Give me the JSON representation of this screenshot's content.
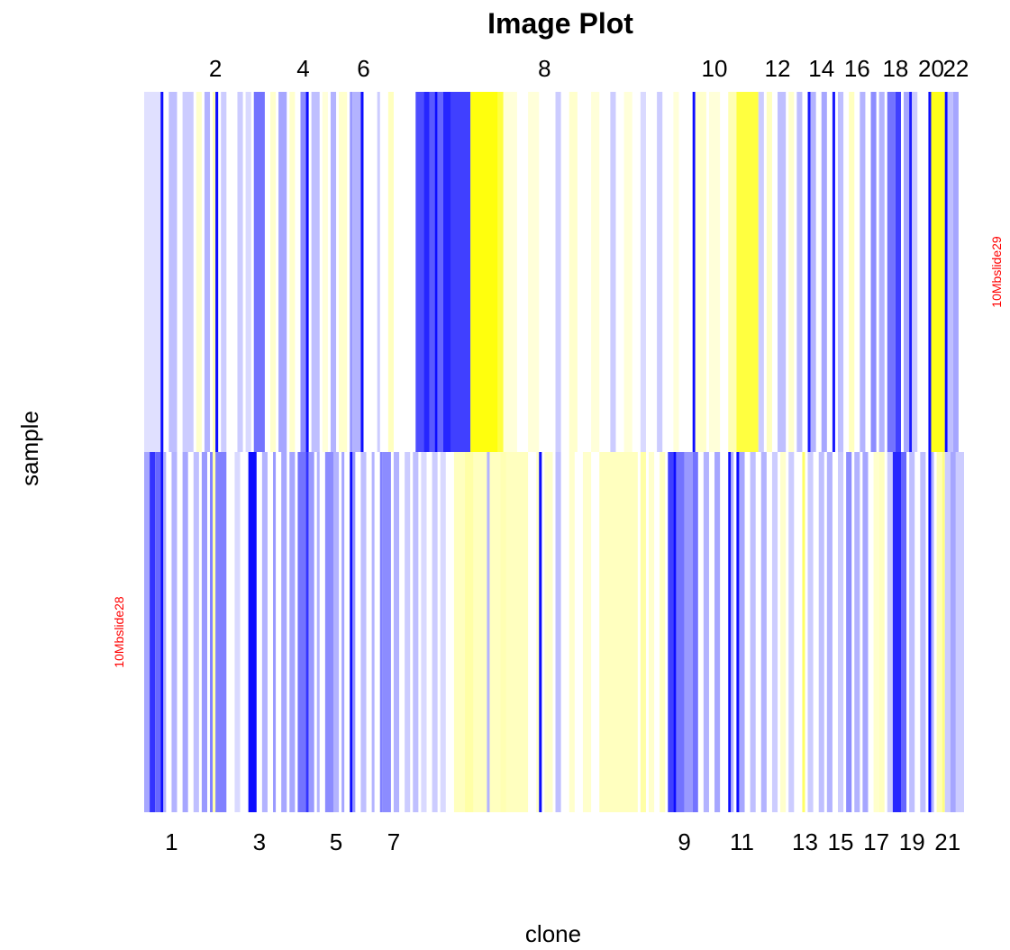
{
  "colors": {
    "low": "#0000ff",
    "mid": "#ffffff",
    "high": "#ffff00",
    "row_label": "#ff0000"
  },
  "chart_data": {
    "type": "heatmap",
    "title": "Image Plot",
    "xlabel": "clone",
    "ylabel": "sample",
    "value_range": [
      -1,
      1
    ],
    "legend": "none",
    "grid": false,
    "samples": [
      "10Mbslide28",
      "10Mbslide29"
    ],
    "x_range": [
      0,
      299
    ],
    "chromosome_labels_bottom": [
      {
        "label": "1",
        "x": 10
      },
      {
        "label": "3",
        "x": 42
      },
      {
        "label": "5",
        "x": 70
      },
      {
        "label": "7",
        "x": 91
      },
      {
        "label": "9",
        "x": 197
      },
      {
        "label": "11",
        "x": 218
      },
      {
        "label": "13",
        "x": 241
      },
      {
        "label": "15",
        "x": 254
      },
      {
        "label": "17",
        "x": 267
      },
      {
        "label": "19",
        "x": 280
      },
      {
        "label": "21",
        "x": 293
      }
    ],
    "chromosome_labels_top": [
      {
        "label": "2",
        "x": 26
      },
      {
        "label": "4",
        "x": 58
      },
      {
        "label": "6",
        "x": 80
      },
      {
        "label": "8",
        "x": 146
      },
      {
        "label": "10",
        "x": 208
      },
      {
        "label": "12",
        "x": 231
      },
      {
        "label": "14",
        "x": 247
      },
      {
        "label": "16",
        "x": 260
      },
      {
        "label": "18",
        "x": 274
      },
      {
        "label": "20",
        "x": 287
      },
      {
        "label": "22",
        "x": 296
      }
    ],
    "rows": [
      {
        "sample": "10Mbslide29",
        "segments": [
          {
            "x0": 0,
            "x1": 299,
            "value": 0
          },
          {
            "x0": 0,
            "x1": 6,
            "value": -0.12
          },
          {
            "x0": 6,
            "x1": 7,
            "value": -0.95
          },
          {
            "x0": 9,
            "x1": 12,
            "value": -0.25
          },
          {
            "x0": 14,
            "x1": 18,
            "value": -0.2
          },
          {
            "x0": 19,
            "x1": 21,
            "value": 0.2
          },
          {
            "x0": 22,
            "x1": 24,
            "value": -0.3
          },
          {
            "x0": 25,
            "x1": 26,
            "value": 0.3
          },
          {
            "x0": 26,
            "x1": 27,
            "value": -0.95
          },
          {
            "x0": 28,
            "x1": 30,
            "value": -0.2
          },
          {
            "x0": 34,
            "x1": 36,
            "value": -0.2
          },
          {
            "x0": 37,
            "x1": 39,
            "value": -0.15
          },
          {
            "x0": 40,
            "x1": 44,
            "value": -0.55
          },
          {
            "x0": 46,
            "x1": 48,
            "value": 0.2
          },
          {
            "x0": 49,
            "x1": 52,
            "value": -0.35
          },
          {
            "x0": 53,
            "x1": 55,
            "value": 0.2
          },
          {
            "x0": 57,
            "x1": 59,
            "value": -0.45
          },
          {
            "x0": 59,
            "x1": 60,
            "value": -0.95
          },
          {
            "x0": 61,
            "x1": 64,
            "value": -0.25
          },
          {
            "x0": 65,
            "x1": 67,
            "value": 0.15
          },
          {
            "x0": 68,
            "x1": 70,
            "value": -0.3
          },
          {
            "x0": 71,
            "x1": 74,
            "value": 0.2
          },
          {
            "x0": 75,
            "x1": 76,
            "value": -0.4
          },
          {
            "x0": 76,
            "x1": 80,
            "value": -0.3
          },
          {
            "x0": 79,
            "x1": 80,
            "value": -0.95
          },
          {
            "x0": 85,
            "x1": 86,
            "value": -0.2
          },
          {
            "x0": 89,
            "x1": 91,
            "value": 0.25
          },
          {
            "x0": 99,
            "x1": 102,
            "value": -0.7
          },
          {
            "x0": 102,
            "x1": 104,
            "value": -0.85
          },
          {
            "x0": 104,
            "x1": 106,
            "value": -0.65
          },
          {
            "x0": 106,
            "x1": 107,
            "value": -0.95
          },
          {
            "x0": 107,
            "x1": 109,
            "value": -0.6
          },
          {
            "x0": 109,
            "x1": 112,
            "value": -0.85
          },
          {
            "x0": 112,
            "x1": 119,
            "value": -0.75
          },
          {
            "x0": 119,
            "x1": 129,
            "value": 0.95
          },
          {
            "x0": 129,
            "x1": 131,
            "value": 0.75
          },
          {
            "x0": 131,
            "x1": 136,
            "value": 0.15
          },
          {
            "x0": 140,
            "x1": 144,
            "value": 0.15
          },
          {
            "x0": 150,
            "x1": 152,
            "value": -0.2
          },
          {
            "x0": 155,
            "x1": 158,
            "value": 0.2
          },
          {
            "x0": 163,
            "x1": 166,
            "value": 0.15
          },
          {
            "x0": 170,
            "x1": 172,
            "value": -0.2
          },
          {
            "x0": 175,
            "x1": 178,
            "value": 0.15
          },
          {
            "x0": 181,
            "x1": 183,
            "value": -0.15
          },
          {
            "x0": 187,
            "x1": 189,
            "value": -0.2
          },
          {
            "x0": 193,
            "x1": 195,
            "value": 0.15
          },
          {
            "x0": 200,
            "x1": 201,
            "value": -0.95
          },
          {
            "x0": 201,
            "x1": 205,
            "value": 0.2
          },
          {
            "x0": 206,
            "x1": 210,
            "value": 0.15
          },
          {
            "x0": 213,
            "x1": 216,
            "value": 0.3
          },
          {
            "x0": 216,
            "x1": 224,
            "value": 0.75
          },
          {
            "x0": 224,
            "x1": 226,
            "value": -0.2
          },
          {
            "x0": 227,
            "x1": 229,
            "value": 0.25
          },
          {
            "x0": 231,
            "x1": 234,
            "value": -0.25
          },
          {
            "x0": 235,
            "x1": 237,
            "value": 0.2
          },
          {
            "x0": 238,
            "x1": 240,
            "value": -0.25
          },
          {
            "x0": 242,
            "x1": 243,
            "value": -0.9
          },
          {
            "x0": 243,
            "x1": 245,
            "value": -0.3
          },
          {
            "x0": 247,
            "x1": 249,
            "value": -0.35
          },
          {
            "x0": 251,
            "x1": 252,
            "value": -0.9
          },
          {
            "x0": 253,
            "x1": 255,
            "value": -0.25
          },
          {
            "x0": 257,
            "x1": 259,
            "value": 0.25
          },
          {
            "x0": 261,
            "x1": 263,
            "value": -0.3
          },
          {
            "x0": 265,
            "x1": 267,
            "value": -0.45
          },
          {
            "x0": 268,
            "x1": 270,
            "value": -0.3
          },
          {
            "x0": 271,
            "x1": 274,
            "value": -0.55
          },
          {
            "x0": 274,
            "x1": 276,
            "value": -0.75
          },
          {
            "x0": 277,
            "x1": 279,
            "value": -0.35
          },
          {
            "x0": 279,
            "x1": 280,
            "value": -0.9
          },
          {
            "x0": 280,
            "x1": 282,
            "value": -0.2
          },
          {
            "x0": 286,
            "x1": 287,
            "value": -0.95
          },
          {
            "x0": 287,
            "x1": 292,
            "value": 0.9
          },
          {
            "x0": 292,
            "x1": 293,
            "value": -0.95
          },
          {
            "x0": 293,
            "x1": 295,
            "value": -0.25
          },
          {
            "x0": 295,
            "x1": 297,
            "value": -0.35
          }
        ]
      },
      {
        "sample": "10Mbslide28",
        "segments": [
          {
            "x0": 0,
            "x1": 299,
            "value": 0
          },
          {
            "x0": 0,
            "x1": 2,
            "value": -0.35
          },
          {
            "x0": 2,
            "x1": 4,
            "value": -0.8
          },
          {
            "x0": 4,
            "x1": 6,
            "value": -0.6
          },
          {
            "x0": 6,
            "x1": 7,
            "value": -0.95
          },
          {
            "x0": 7,
            "x1": 8,
            "value": -0.3
          },
          {
            "x0": 10,
            "x1": 12,
            "value": -0.3
          },
          {
            "x0": 14,
            "x1": 16,
            "value": -0.35
          },
          {
            "x0": 18,
            "x1": 20,
            "value": -0.25
          },
          {
            "x0": 21,
            "x1": 23,
            "value": -0.4
          },
          {
            "x0": 24,
            "x1": 25,
            "value": -0.5
          },
          {
            "x0": 25,
            "x1": 26,
            "value": 0.35
          },
          {
            "x0": 26,
            "x1": 30,
            "value": -0.5
          },
          {
            "x0": 33,
            "x1": 35,
            "value": -0.15
          },
          {
            "x0": 38,
            "x1": 41,
            "value": -0.95
          },
          {
            "x0": 43,
            "x1": 45,
            "value": -0.3
          },
          {
            "x0": 47,
            "x1": 48,
            "value": -0.4
          },
          {
            "x0": 50,
            "x1": 52,
            "value": -0.35
          },
          {
            "x0": 53,
            "x1": 55,
            "value": -0.35
          },
          {
            "x0": 56,
            "x1": 59,
            "value": -0.55
          },
          {
            "x0": 59,
            "x1": 60,
            "value": -0.8
          },
          {
            "x0": 60,
            "x1": 62,
            "value": -0.4
          },
          {
            "x0": 63,
            "x1": 64,
            "value": -0.3
          },
          {
            "x0": 66,
            "x1": 69,
            "value": -0.45
          },
          {
            "x0": 69,
            "x1": 71,
            "value": -0.3
          },
          {
            "x0": 72,
            "x1": 73,
            "value": -0.35
          },
          {
            "x0": 75,
            "x1": 76,
            "value": -0.95
          },
          {
            "x0": 76,
            "x1": 77,
            "value": -0.4
          },
          {
            "x0": 79,
            "x1": 81,
            "value": -0.25
          },
          {
            "x0": 83,
            "x1": 84,
            "value": -0.3
          },
          {
            "x0": 86,
            "x1": 87,
            "value": -0.5
          },
          {
            "x0": 87,
            "x1": 90,
            "value": -0.45
          },
          {
            "x0": 91,
            "x1": 93,
            "value": -0.3
          },
          {
            "x0": 95,
            "x1": 97,
            "value": -0.2
          },
          {
            "x0": 98,
            "x1": 100,
            "value": -0.25
          },
          {
            "x0": 101,
            "x1": 103,
            "value": -0.15
          },
          {
            "x0": 105,
            "x1": 107,
            "value": -0.2
          },
          {
            "x0": 108,
            "x1": 110,
            "value": -0.15
          },
          {
            "x0": 113,
            "x1": 140,
            "value": 0.25
          },
          {
            "x0": 117,
            "x1": 120,
            "value": 0.35
          },
          {
            "x0": 125,
            "x1": 126,
            "value": -0.3
          },
          {
            "x0": 130,
            "x1": 132,
            "value": 0.3
          },
          {
            "x0": 143,
            "x1": 145,
            "value": 0.2
          },
          {
            "x0": 144,
            "x1": 145,
            "value": -0.95
          },
          {
            "x0": 146,
            "x1": 149,
            "value": 0.2
          },
          {
            "x0": 150,
            "x1": 152,
            "value": -0.25
          },
          {
            "x0": 155,
            "x1": 157,
            "value": 0.2
          },
          {
            "x0": 160,
            "x1": 163,
            "value": 0.2
          },
          {
            "x0": 166,
            "x1": 180,
            "value": 0.25
          },
          {
            "x0": 181,
            "x1": 183,
            "value": 0.35
          },
          {
            "x0": 184,
            "x1": 186,
            "value": 0.2
          },
          {
            "x0": 188,
            "x1": 190,
            "value": 0.25
          },
          {
            "x0": 191,
            "x1": 193,
            "value": -0.75
          },
          {
            "x0": 193,
            "x1": 194,
            "value": -0.95
          },
          {
            "x0": 194,
            "x1": 197,
            "value": -0.55
          },
          {
            "x0": 197,
            "x1": 200,
            "value": -0.4
          },
          {
            "x0": 200,
            "x1": 202,
            "value": -0.55
          },
          {
            "x0": 204,
            "x1": 206,
            "value": -0.3
          },
          {
            "x0": 208,
            "x1": 210,
            "value": -0.35
          },
          {
            "x0": 213,
            "x1": 214,
            "value": -0.95
          },
          {
            "x0": 214,
            "x1": 215,
            "value": -0.3
          },
          {
            "x0": 216,
            "x1": 217,
            "value": -0.95
          },
          {
            "x0": 217,
            "x1": 219,
            "value": -0.35
          },
          {
            "x0": 221,
            "x1": 223,
            "value": -0.25
          },
          {
            "x0": 225,
            "x1": 227,
            "value": -0.3
          },
          {
            "x0": 229,
            "x1": 231,
            "value": -0.2
          },
          {
            "x0": 232,
            "x1": 234,
            "value": 0.2
          },
          {
            "x0": 235,
            "x1": 237,
            "value": -0.2
          },
          {
            "x0": 240,
            "x1": 241,
            "value": 0.6
          },
          {
            "x0": 242,
            "x1": 244,
            "value": -0.2
          },
          {
            "x0": 246,
            "x1": 248,
            "value": -0.25
          },
          {
            "x0": 249,
            "x1": 251,
            "value": -0.3
          },
          {
            "x0": 253,
            "x1": 255,
            "value": -0.2
          },
          {
            "x0": 256,
            "x1": 258,
            "value": -0.45
          },
          {
            "x0": 259,
            "x1": 261,
            "value": -0.3
          },
          {
            "x0": 262,
            "x1": 264,
            "value": -0.35
          },
          {
            "x0": 266,
            "x1": 268,
            "value": 0.2
          },
          {
            "x0": 268,
            "x1": 270,
            "value": 0.25
          },
          {
            "x0": 271,
            "x1": 273,
            "value": -0.2
          },
          {
            "x0": 273,
            "x1": 276,
            "value": -0.85
          },
          {
            "x0": 276,
            "x1": 278,
            "value": -0.6
          },
          {
            "x0": 279,
            "x1": 281,
            "value": -0.25
          },
          {
            "x0": 283,
            "x1": 285,
            "value": -0.25
          },
          {
            "x0": 286,
            "x1": 287,
            "value": -0.95
          },
          {
            "x0": 287,
            "x1": 288,
            "value": -0.3
          },
          {
            "x0": 289,
            "x1": 291,
            "value": 0.3
          },
          {
            "x0": 291,
            "x1": 292,
            "value": 0.5
          },
          {
            "x0": 292,
            "x1": 294,
            "value": -0.2
          },
          {
            "x0": 294,
            "x1": 296,
            "value": -0.35
          },
          {
            "x0": 296,
            "x1": 299,
            "value": -0.2
          }
        ]
      }
    ]
  }
}
